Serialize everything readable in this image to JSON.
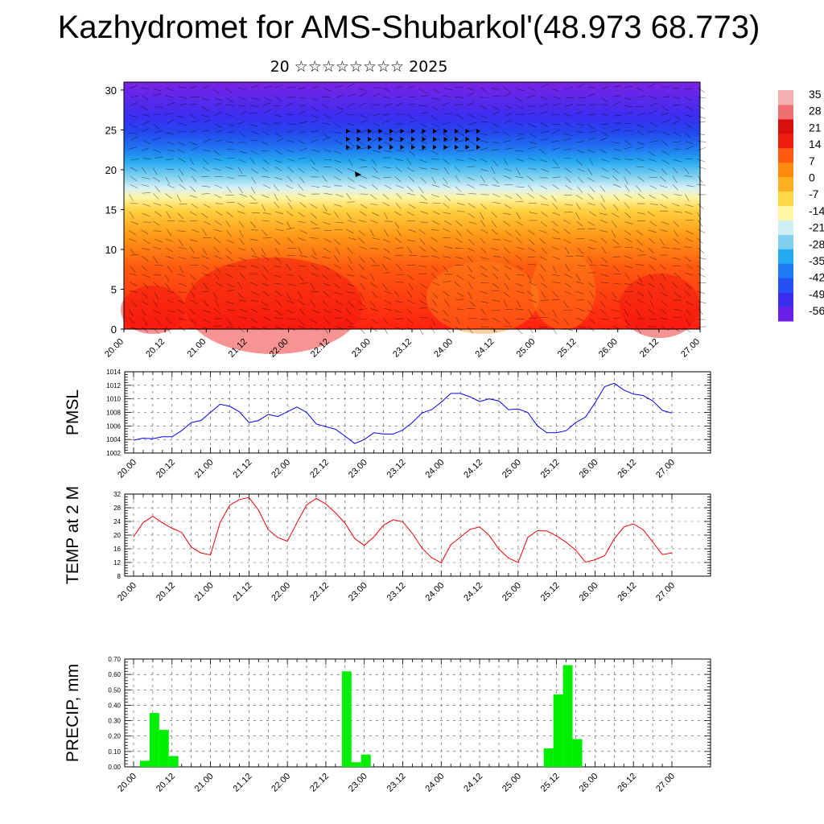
{
  "title": "Kazhydromet for AMS-Shubarkol'(48.973 68.773)",
  "subtitle": "20 ☆☆☆☆☆☆☆☆ 2025",
  "colors": {
    "pmsl_line": "#0000ee",
    "temp_line": "#ee0000",
    "precip_bar": "#00ee00",
    "colorbar": [
      "#6a1ee6",
      "#3b2df0",
      "#2550f5",
      "#1e7af5",
      "#22aaf2",
      "#7fd0f0",
      "#cfeff2",
      "#fff6a8",
      "#ffd84a",
      "#ffb020",
      "#ff8a10",
      "#ff5a10",
      "#f01e10",
      "#d80f0f",
      "#f07070",
      "#f4b0b0"
    ]
  },
  "chart_data": [
    {
      "type": "heatmap",
      "name": "cross-section",
      "y_ticks": [
        0,
        5,
        10,
        15,
        20,
        25,
        30
      ],
      "ylim": [
        0,
        31
      ],
      "x_ticks": [
        "20.00",
        "20.12",
        "21.00",
        "21.12",
        "22.00",
        "22.12",
        "23.00",
        "23.12",
        "24.00",
        "24.12",
        "25.00",
        "25.12",
        "26.00",
        "26.12",
        "27.00"
      ],
      "colorbar_labels": [
        "35",
        "28",
        "21",
        "14",
        "7",
        "0",
        "-7",
        "-14",
        "-21",
        "-28",
        "-35",
        "-42",
        "-49",
        "-56"
      ]
    },
    {
      "type": "line",
      "ylabel": "PMSL",
      "ylim": [
        1002,
        1014
      ],
      "y_ticks": [
        1002,
        1004,
        1006,
        1008,
        1010,
        1012,
        1014
      ],
      "x_ticks": [
        "20.00",
        "20.12",
        "21.00",
        "21.12",
        "22.00",
        "22.12",
        "23.00",
        "23.12",
        "24.00",
        "24.12",
        "25.00",
        "25.12",
        "26.00",
        "26.12",
        "27.00"
      ],
      "x_step_hours": 3,
      "values": [
        1003.9,
        1004.2,
        1004.1,
        1004.4,
        1004.4,
        1005.3,
        1006.5,
        1006.8,
        1008.0,
        1009.2,
        1008.9,
        1008.1,
        1006.5,
        1006.8,
        1007.7,
        1007.4,
        1008.1,
        1008.8,
        1008.0,
        1006.3,
        1005.9,
        1005.5,
        1004.5,
        1003.4,
        1004.0,
        1005.0,
        1004.8,
        1004.8,
        1005.4,
        1006.5,
        1007.9,
        1008.4,
        1009.5,
        1010.8,
        1010.8,
        1010.3,
        1009.6,
        1010.0,
        1009.7,
        1008.4,
        1008.5,
        1008.0,
        1006.0,
        1005.0,
        1005.0,
        1005.3,
        1006.5,
        1007.3,
        1009.4,
        1011.8,
        1012.3,
        1011.3,
        1010.7,
        1010.5,
        1009.7,
        1008.3,
        1007.9
      ]
    },
    {
      "type": "line",
      "ylabel": "TEMP at 2 M",
      "ylim": [
        8,
        32
      ],
      "y_ticks": [
        8,
        12,
        16,
        20,
        24,
        28,
        32
      ],
      "x_ticks": [
        "20.00",
        "20.12",
        "21.00",
        "21.12",
        "22.00",
        "22.12",
        "23.00",
        "23.12",
        "24.00",
        "24.12",
        "25.00",
        "25.12",
        "26.00",
        "26.12",
        "27.00"
      ],
      "x_step_hours": 3,
      "values": [
        19.5,
        23.7,
        25.5,
        23.6,
        22.0,
        20.8,
        16.5,
        14.8,
        14.2,
        23.7,
        28.7,
        30.4,
        31.0,
        27.3,
        21.6,
        19.3,
        18.2,
        23.7,
        28.8,
        30.7,
        29.1,
        26.5,
        23.5,
        19.0,
        17.0,
        19.5,
        22.9,
        24.5,
        23.9,
        20.5,
        16.2,
        13.4,
        11.9,
        17.2,
        19.4,
        21.7,
        22.4,
        19.9,
        15.9,
        13.3,
        12.0,
        19.3,
        21.3,
        21.2,
        19.8,
        17.9,
        15.6,
        12.1,
        12.8,
        14.0,
        18.9,
        22.4,
        23.3,
        21.6,
        18.0,
        14.3,
        14.8
      ]
    },
    {
      "type": "bar",
      "ylabel": "PRECIP, mm",
      "ylim": [
        0,
        0.7
      ],
      "y_ticks": [
        "0.00",
        "0.10",
        "0.20",
        "0.30",
        "0.40",
        "0.50",
        "0.60",
        "0.70"
      ],
      "x_ticks": [
        "20.00",
        "20.12",
        "21.00",
        "21.12",
        "22.00",
        "22.12",
        "23.00",
        "23.12",
        "24.00",
        "24.12",
        "25.00",
        "25.12",
        "26.00",
        "26.12",
        "27.00"
      ],
      "x_step_hours": 3,
      "bars": [
        {
          "hour": 3,
          "value": 0.04
        },
        {
          "hour": 6,
          "value": 0.35
        },
        {
          "hour": 9,
          "value": 0.24
        },
        {
          "hour": 12,
          "value": 0.07
        },
        {
          "hour": 66,
          "value": 0.62
        },
        {
          "hour": 69,
          "value": 0.03
        },
        {
          "hour": 72,
          "value": 0.08
        },
        {
          "hour": 129,
          "value": 0.12
        },
        {
          "hour": 132,
          "value": 0.47
        },
        {
          "hour": 135,
          "value": 0.66
        },
        {
          "hour": 138,
          "value": 0.18
        }
      ]
    }
  ]
}
